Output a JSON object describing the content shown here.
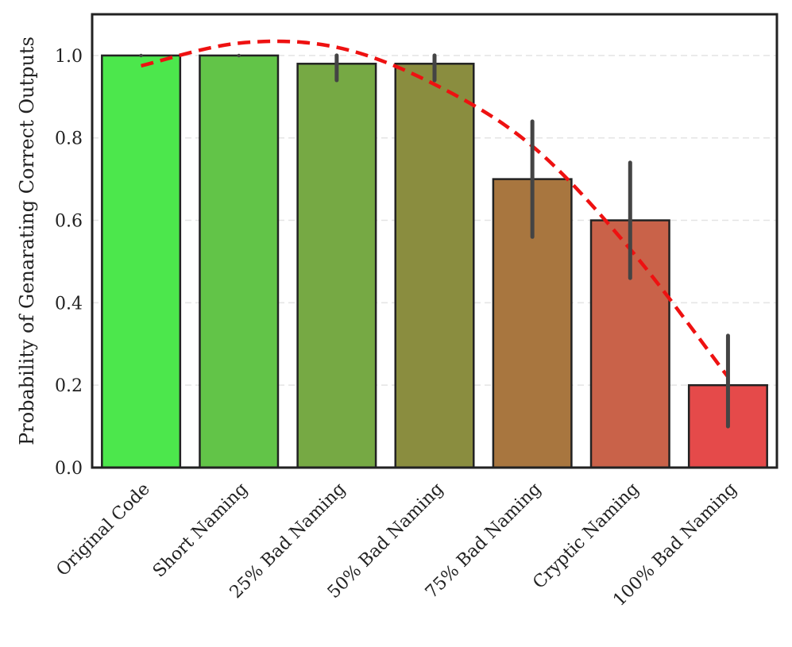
{
  "chart_data": {
    "type": "bar",
    "title": "",
    "xlabel": "",
    "ylabel": "Probability of Genarating Correct Outputs",
    "ylim": [
      0,
      1.1
    ],
    "yticks": [
      "0.0",
      "0.2",
      "0.4",
      "0.6",
      "0.8",
      "1.0"
    ],
    "grid": "horizontal dashed",
    "categories": [
      "Original Code",
      "Short Naming",
      "25% Bad Naming",
      "50% Bad Naming",
      "75% Bad Naming",
      "Cryptic Naming",
      "100% Bad Naming"
    ],
    "values": [
      1.0,
      1.0,
      0.98,
      0.98,
      0.7,
      0.6,
      0.2
    ],
    "error_low": [
      1.0,
      1.0,
      0.94,
      0.94,
      0.56,
      0.46,
      0.1
    ],
    "error_high": [
      1.0,
      1.0,
      1.0,
      1.0,
      0.84,
      0.74,
      0.32
    ],
    "bar_colors": [
      "#4ce74c",
      "#62c448",
      "#76a944",
      "#8a8d3f",
      "#a8763f",
      "#c96249",
      "#e54a4a"
    ],
    "trend_line": {
      "style": "dashed",
      "color": "#ee1111",
      "x_index": [
        0,
        1,
        2,
        3,
        4,
        5,
        6
      ],
      "values": [
        0.975,
        1.03,
        1.02,
        0.93,
        0.78,
        0.53,
        0.22
      ]
    }
  }
}
